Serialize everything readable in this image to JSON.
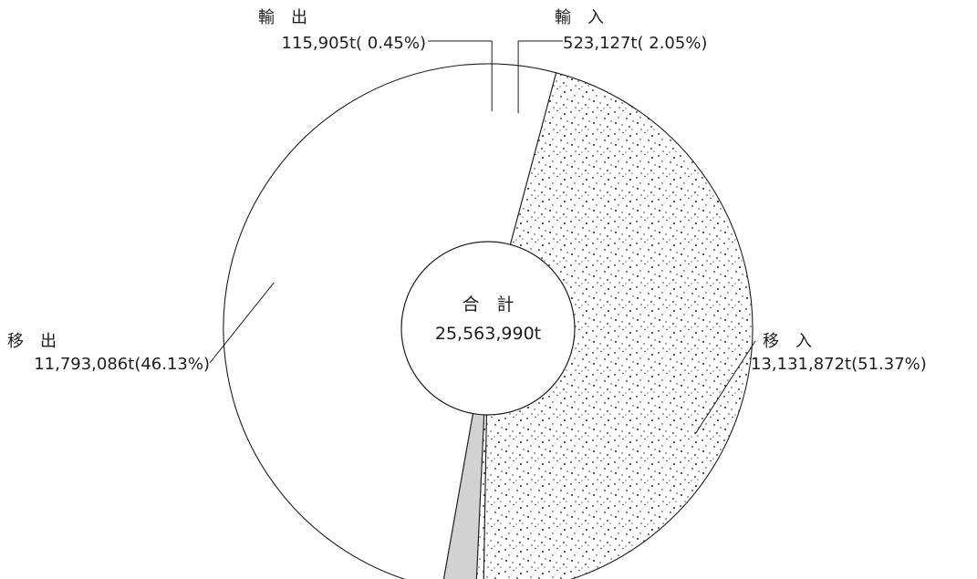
{
  "chart_data": {
    "type": "pie",
    "center_label": "合　計",
    "total": "25,563,990t",
    "slices": [
      {
        "name": "移　入",
        "value": 13131872,
        "value_text": "13,131,872t",
        "percent_text": "(51.37%)",
        "fill": "white"
      },
      {
        "name": "移　出",
        "value": 11793086,
        "value_text": "11,793,086t",
        "percent_text": "(46.13%)",
        "fill": "dots"
      },
      {
        "name": "輸　出",
        "value": 115905,
        "value_text": "115,905t",
        "percent_text": "( 0.45%)",
        "fill": "dots"
      },
      {
        "name": "輸　入",
        "value": 523127,
        "value_text": "523,127t",
        "percent_text": "( 2.05%)",
        "fill": "gray"
      }
    ],
    "colors": {
      "white": "#ffffff",
      "gray": "#d2d2d2",
      "dots": "#1e1e1e",
      "stroke": "#1e1e1e"
    },
    "legend": "none",
    "grid": false
  }
}
